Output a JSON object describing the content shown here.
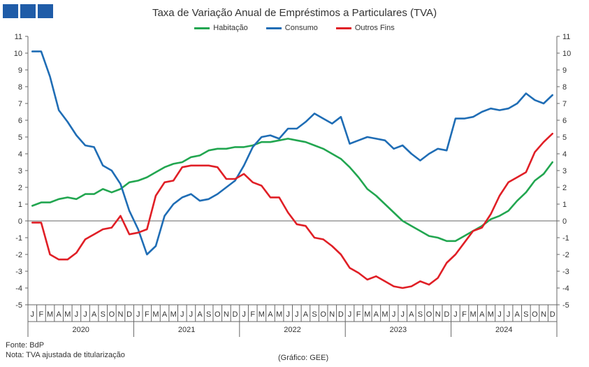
{
  "colors": {
    "habitacao": "#22a650",
    "consumo": "#1f6db5",
    "outros": "#e01f26",
    "logo": "#1f5ca8"
  },
  "logo_icon": "institution-logo-squares",
  "footer": {
    "source": "Fonte: BdP",
    "note": "Nota: TVA ajustada de titularização",
    "credit": "(Gráfico: GEE)"
  },
  "chart_data": {
    "type": "line",
    "title": "Taxa de Variação Anual de Empréstimos  a Particulares (TVA)",
    "xlabel": "",
    "ylabel": "",
    "ylim": [
      -5,
      11
    ],
    "yticks": [
      -5,
      -4,
      -3,
      -2,
      -1,
      0,
      1,
      2,
      3,
      4,
      5,
      6,
      7,
      8,
      9,
      10,
      11
    ],
    "grid": false,
    "legend": "top-center",
    "month_labels": [
      "J",
      "F",
      "M",
      "A",
      "M",
      "J",
      "J",
      "A",
      "S",
      "O",
      "N",
      "D"
    ],
    "years": [
      "2020",
      "2021",
      "2022",
      "2023",
      "2024"
    ],
    "series": [
      {
        "name": "Habitação",
        "color": "#22a650",
        "values": [
          0.9,
          1.1,
          1.1,
          1.3,
          1.4,
          1.3,
          1.6,
          1.6,
          1.9,
          1.7,
          1.9,
          2.3,
          2.4,
          2.6,
          2.9,
          3.2,
          3.4,
          3.5,
          3.8,
          3.9,
          4.2,
          4.3,
          4.3,
          4.4,
          4.4,
          4.5,
          4.7,
          4.7,
          4.8,
          4.9,
          4.8,
          4.7,
          4.5,
          4.3,
          4.0,
          3.7,
          3.2,
          2.6,
          1.9,
          1.5,
          1.0,
          0.5,
          0.0,
          -0.3,
          -0.6,
          -0.9,
          -1.0,
          -1.2,
          -1.2,
          -0.9,
          -0.6,
          -0.3,
          0.1,
          0.3,
          0.6,
          1.2,
          1.7,
          2.4,
          2.8,
          3.5
        ]
      },
      {
        "name": "Consumo",
        "color": "#1f6db5",
        "values": [
          10.1,
          10.1,
          8.6,
          6.6,
          5.9,
          5.1,
          4.5,
          4.4,
          3.3,
          3.0,
          2.2,
          0.6,
          -0.5,
          -2.0,
          -1.5,
          0.3,
          1.0,
          1.4,
          1.6,
          1.2,
          1.3,
          1.6,
          2.0,
          2.4,
          3.3,
          4.4,
          5.0,
          5.1,
          4.9,
          5.5,
          5.5,
          5.9,
          6.4,
          6.1,
          5.8,
          6.2,
          4.6,
          4.8,
          5.0,
          4.9,
          4.8,
          4.3,
          4.5,
          4.0,
          3.6,
          4.0,
          4.3,
          4.2,
          6.1,
          6.1,
          6.2,
          6.5,
          6.7,
          6.6,
          6.7,
          7.0,
          7.6,
          7.2,
          7.0,
          7.5
        ]
      },
      {
        "name": "Outros Fins",
        "color": "#e01f26",
        "values": [
          -0.1,
          -0.1,
          -2.0,
          -2.3,
          -2.3,
          -1.9,
          -1.1,
          -0.8,
          -0.5,
          -0.4,
          0.3,
          -0.8,
          -0.7,
          -0.5,
          1.5,
          2.3,
          2.4,
          3.2,
          3.3,
          3.3,
          3.3,
          3.2,
          2.5,
          2.5,
          2.8,
          2.3,
          2.1,
          1.4,
          1.4,
          0.5,
          -0.2,
          -0.3,
          -1.0,
          -1.1,
          -1.5,
          -2.0,
          -2.8,
          -3.1,
          -3.5,
          -3.3,
          -3.6,
          -3.9,
          -4.0,
          -3.9,
          -3.6,
          -3.8,
          -3.4,
          -2.5,
          -2.0,
          -1.3,
          -0.6,
          -0.4,
          0.4,
          1.5,
          2.3,
          2.6,
          2.9,
          4.1,
          4.7,
          5.2
        ]
      }
    ]
  }
}
